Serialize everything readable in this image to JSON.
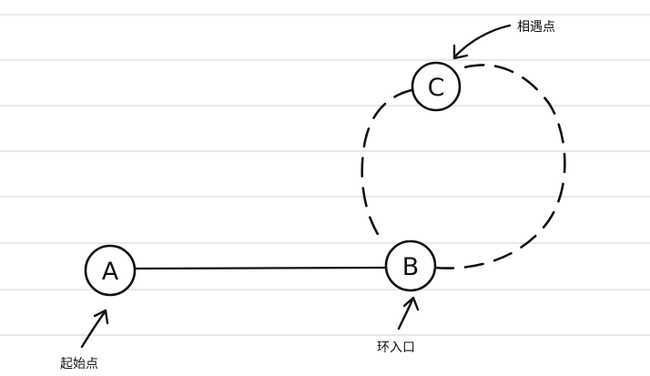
{
  "colors": {
    "ink": "#111111",
    "ruled_line": "#d9d9d9",
    "paper": "#ffffff"
  },
  "nodes": [
    {
      "id": "A",
      "letter": "A"
    },
    {
      "id": "B",
      "letter": "B"
    },
    {
      "id": "C",
      "letter": "C"
    }
  ],
  "annotations": {
    "start_point": "起始点",
    "cycle_entry": "环入口",
    "meeting_point": "相遇点"
  }
}
